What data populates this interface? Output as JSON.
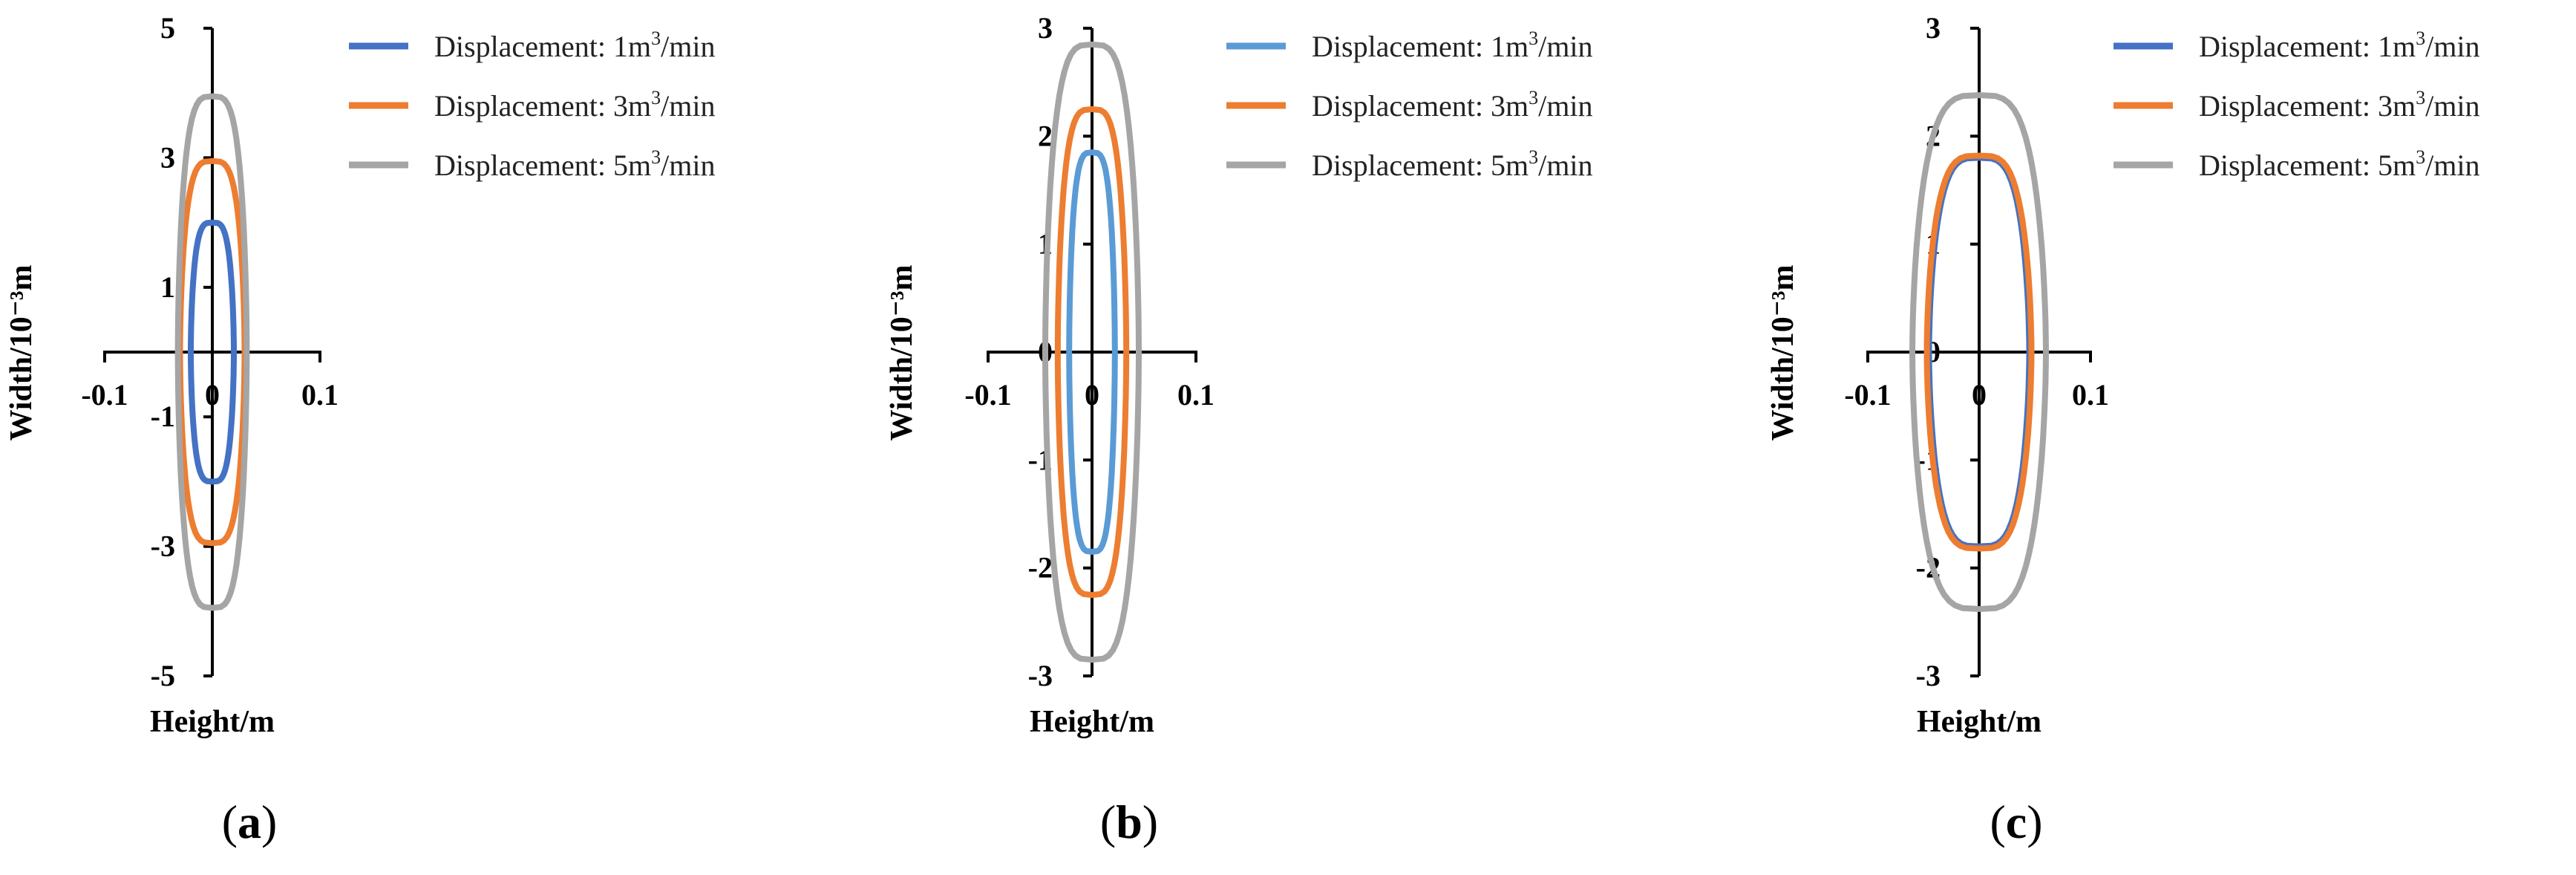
{
  "chart_data": [
    {
      "type": "line",
      "panel_label": "a",
      "xlabel": "Height/m",
      "ylabel": "Width/10⁻³m",
      "xlim": [
        -0.1,
        0.1
      ],
      "ylim": [
        -5,
        5
      ],
      "x_ticks": [
        "-0.1",
        "0",
        "0.1"
      ],
      "y_ticks": [
        "5",
        "3",
        "1",
        "-1",
        "-3",
        "-5"
      ],
      "y_tick_values": [
        5,
        3,
        1,
        -1,
        -3,
        -5
      ],
      "legend_position": "top-right",
      "series": [
        {
          "name": "Displacement: 1m³/min",
          "color": "#4472C4",
          "half_height": 0.02,
          "half_width": 2.0
        },
        {
          "name": "Displacement: 3m³/min",
          "color": "#ED7D31",
          "half_height": 0.03,
          "half_width": 2.95
        },
        {
          "name": "Displacement: 5m³/min",
          "color": "#A5A5A5",
          "half_height": 0.032,
          "half_width": 3.95
        }
      ]
    },
    {
      "type": "line",
      "panel_label": "b",
      "xlabel": "Height/m",
      "ylabel": "Width/10⁻³m",
      "xlim": [
        -0.1,
        0.1
      ],
      "ylim": [
        -3,
        3
      ],
      "x_ticks": [
        "-0.1",
        "0",
        "0.1"
      ],
      "y_ticks": [
        "3",
        "2",
        "1",
        "0",
        "-1",
        "-2",
        "-3"
      ],
      "y_tick_values": [
        3,
        2,
        1,
        0,
        -1,
        -2,
        -3
      ],
      "legend_position": "top-right",
      "series": [
        {
          "name": "Displacement: 1m³/min",
          "color": "#5B9BD5",
          "half_height": 0.022,
          "half_width": 1.85
        },
        {
          "name": "Displacement: 3m³/min",
          "color": "#ED7D31",
          "half_height": 0.033,
          "half_width": 2.25
        },
        {
          "name": "Displacement: 5m³/min",
          "color": "#A5A5A5",
          "half_height": 0.045,
          "half_width": 2.85
        }
      ]
    },
    {
      "type": "line",
      "panel_label": "c",
      "xlabel": "Height/m",
      "ylabel": "Width/10⁻³m",
      "xlim": [
        -0.1,
        0.1
      ],
      "ylim": [
        -3,
        3
      ],
      "x_ticks": [
        "-0.1",
        "0",
        "0.1"
      ],
      "y_ticks": [
        "3",
        "2",
        "1",
        "0",
        "-1",
        "-2",
        "-3"
      ],
      "y_tick_values": [
        3,
        2,
        1,
        0,
        -1,
        -2,
        -3
      ],
      "legend_position": "top-right",
      "series": [
        {
          "name": "Displacement: 1m³/min",
          "color": "#4472C4",
          "half_height": 0.045,
          "half_width": 1.8
        },
        {
          "name": "Displacement: 3m³/min",
          "color": "#ED7D31",
          "half_height": 0.047,
          "half_width": 1.82
        },
        {
          "name": "Displacement: 5m³/min",
          "color": "#A5A5A5",
          "half_height": 0.06,
          "half_width": 2.38
        }
      ]
    }
  ]
}
